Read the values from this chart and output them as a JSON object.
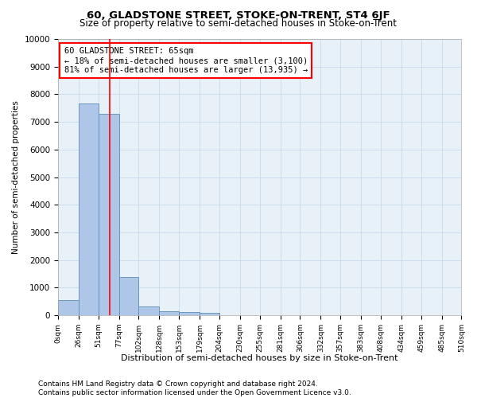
{
  "title": "60, GLADSTONE STREET, STOKE-ON-TRENT, ST4 6JF",
  "subtitle": "Size of property relative to semi-detached houses in Stoke-on-Trent",
  "xlabel": "Distribution of semi-detached houses by size in Stoke-on-Trent",
  "ylabel": "Number of semi-detached properties",
  "bar_edges": [
    0,
    26,
    51,
    77,
    102,
    128,
    153,
    179,
    204,
    230,
    255,
    281,
    306,
    332,
    357,
    383,
    408,
    434,
    459,
    485,
    510
  ],
  "bar_heights": [
    550,
    7680,
    7300,
    1380,
    320,
    160,
    110,
    90,
    0,
    0,
    0,
    0,
    0,
    0,
    0,
    0,
    0,
    0,
    0,
    0
  ],
  "bar_color": "#aec6e8",
  "bar_edge_color": "#5b8db8",
  "grid_color": "#c8daea",
  "background_color": "#e8f0f8",
  "red_line_x": 65,
  "annotation_text": "60 GLADSTONE STREET: 65sqm\n← 18% of semi-detached houses are smaller (3,100)\n81% of semi-detached houses are larger (13,935) →",
  "ylim": [
    0,
    10000
  ],
  "yticks": [
    0,
    1000,
    2000,
    3000,
    4000,
    5000,
    6000,
    7000,
    8000,
    9000,
    10000
  ],
  "tick_labels": [
    "0sqm",
    "26sqm",
    "51sqm",
    "77sqm",
    "102sqm",
    "128sqm",
    "153sqm",
    "179sqm",
    "204sqm",
    "230sqm",
    "255sqm",
    "281sqm",
    "306sqm",
    "332sqm",
    "357sqm",
    "383sqm",
    "408sqm",
    "434sqm",
    "459sqm",
    "485sqm",
    "510sqm"
  ],
  "footer": "Contains HM Land Registry data © Crown copyright and database right 2024.\nContains public sector information licensed under the Open Government Licence v3.0.",
  "title_fontsize": 9.5,
  "subtitle_fontsize": 8.5,
  "ylabel_fontsize": 7.5,
  "xlabel_fontsize": 8,
  "annotation_fontsize": 7.5,
  "footer_fontsize": 6.5,
  "ytick_fontsize": 7.5,
  "xtick_fontsize": 6.5
}
